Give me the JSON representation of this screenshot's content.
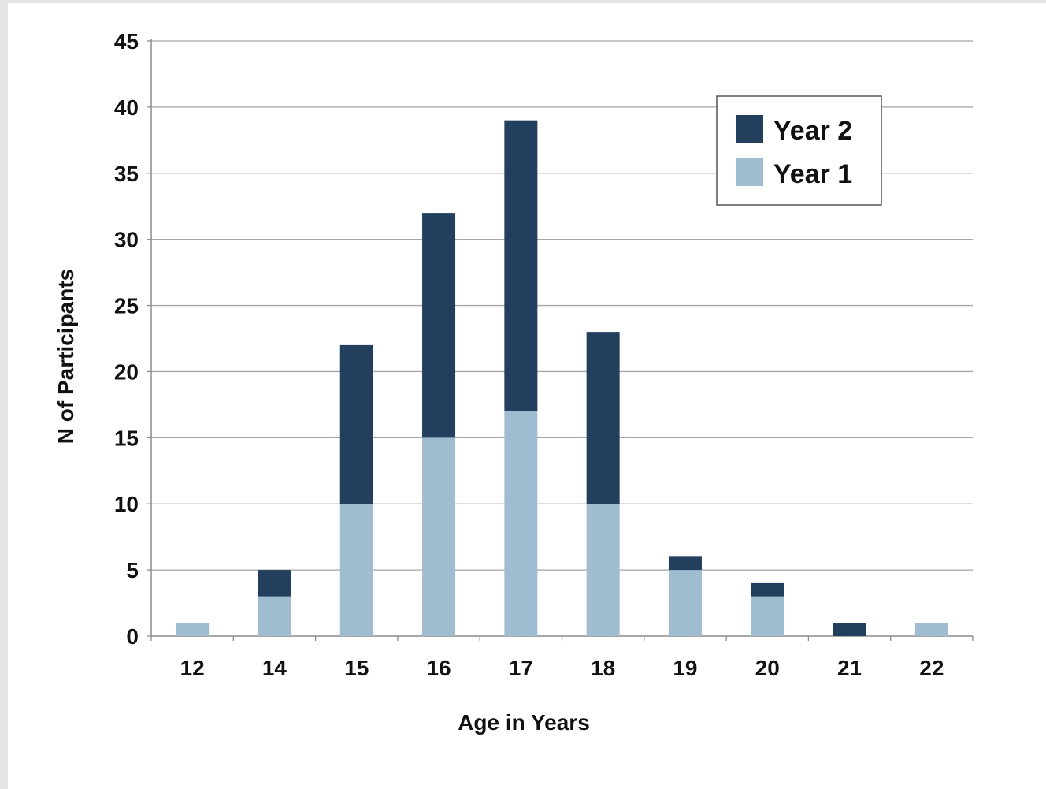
{
  "chart_data": {
    "type": "bar",
    "stacked": true,
    "categories": [
      "12",
      "14",
      "15",
      "16",
      "17",
      "18",
      "19",
      "20",
      "21",
      "22"
    ],
    "series": [
      {
        "name": "Year 1",
        "values": [
          1,
          3,
          10,
          15,
          17,
          10,
          5,
          3,
          0,
          1
        ]
      },
      {
        "name": "Year 2",
        "values": [
          0,
          2,
          12,
          17,
          22,
          13,
          1,
          1,
          1,
          0
        ]
      }
    ],
    "yticks": [
      "0",
      "5",
      "10",
      "15",
      "20",
      "25",
      "30",
      "35",
      "40",
      "45"
    ],
    "ylim": [
      0,
      45
    ],
    "xlabel": "Age in Years",
    "ylabel": "N of  Participants",
    "grid": true,
    "legend_position": "top-right",
    "legend_order": [
      "Year 2",
      "Year 1"
    ],
    "colors": {
      "Year 1": "#a0bcd1",
      "Year 2": "#22405e"
    }
  }
}
